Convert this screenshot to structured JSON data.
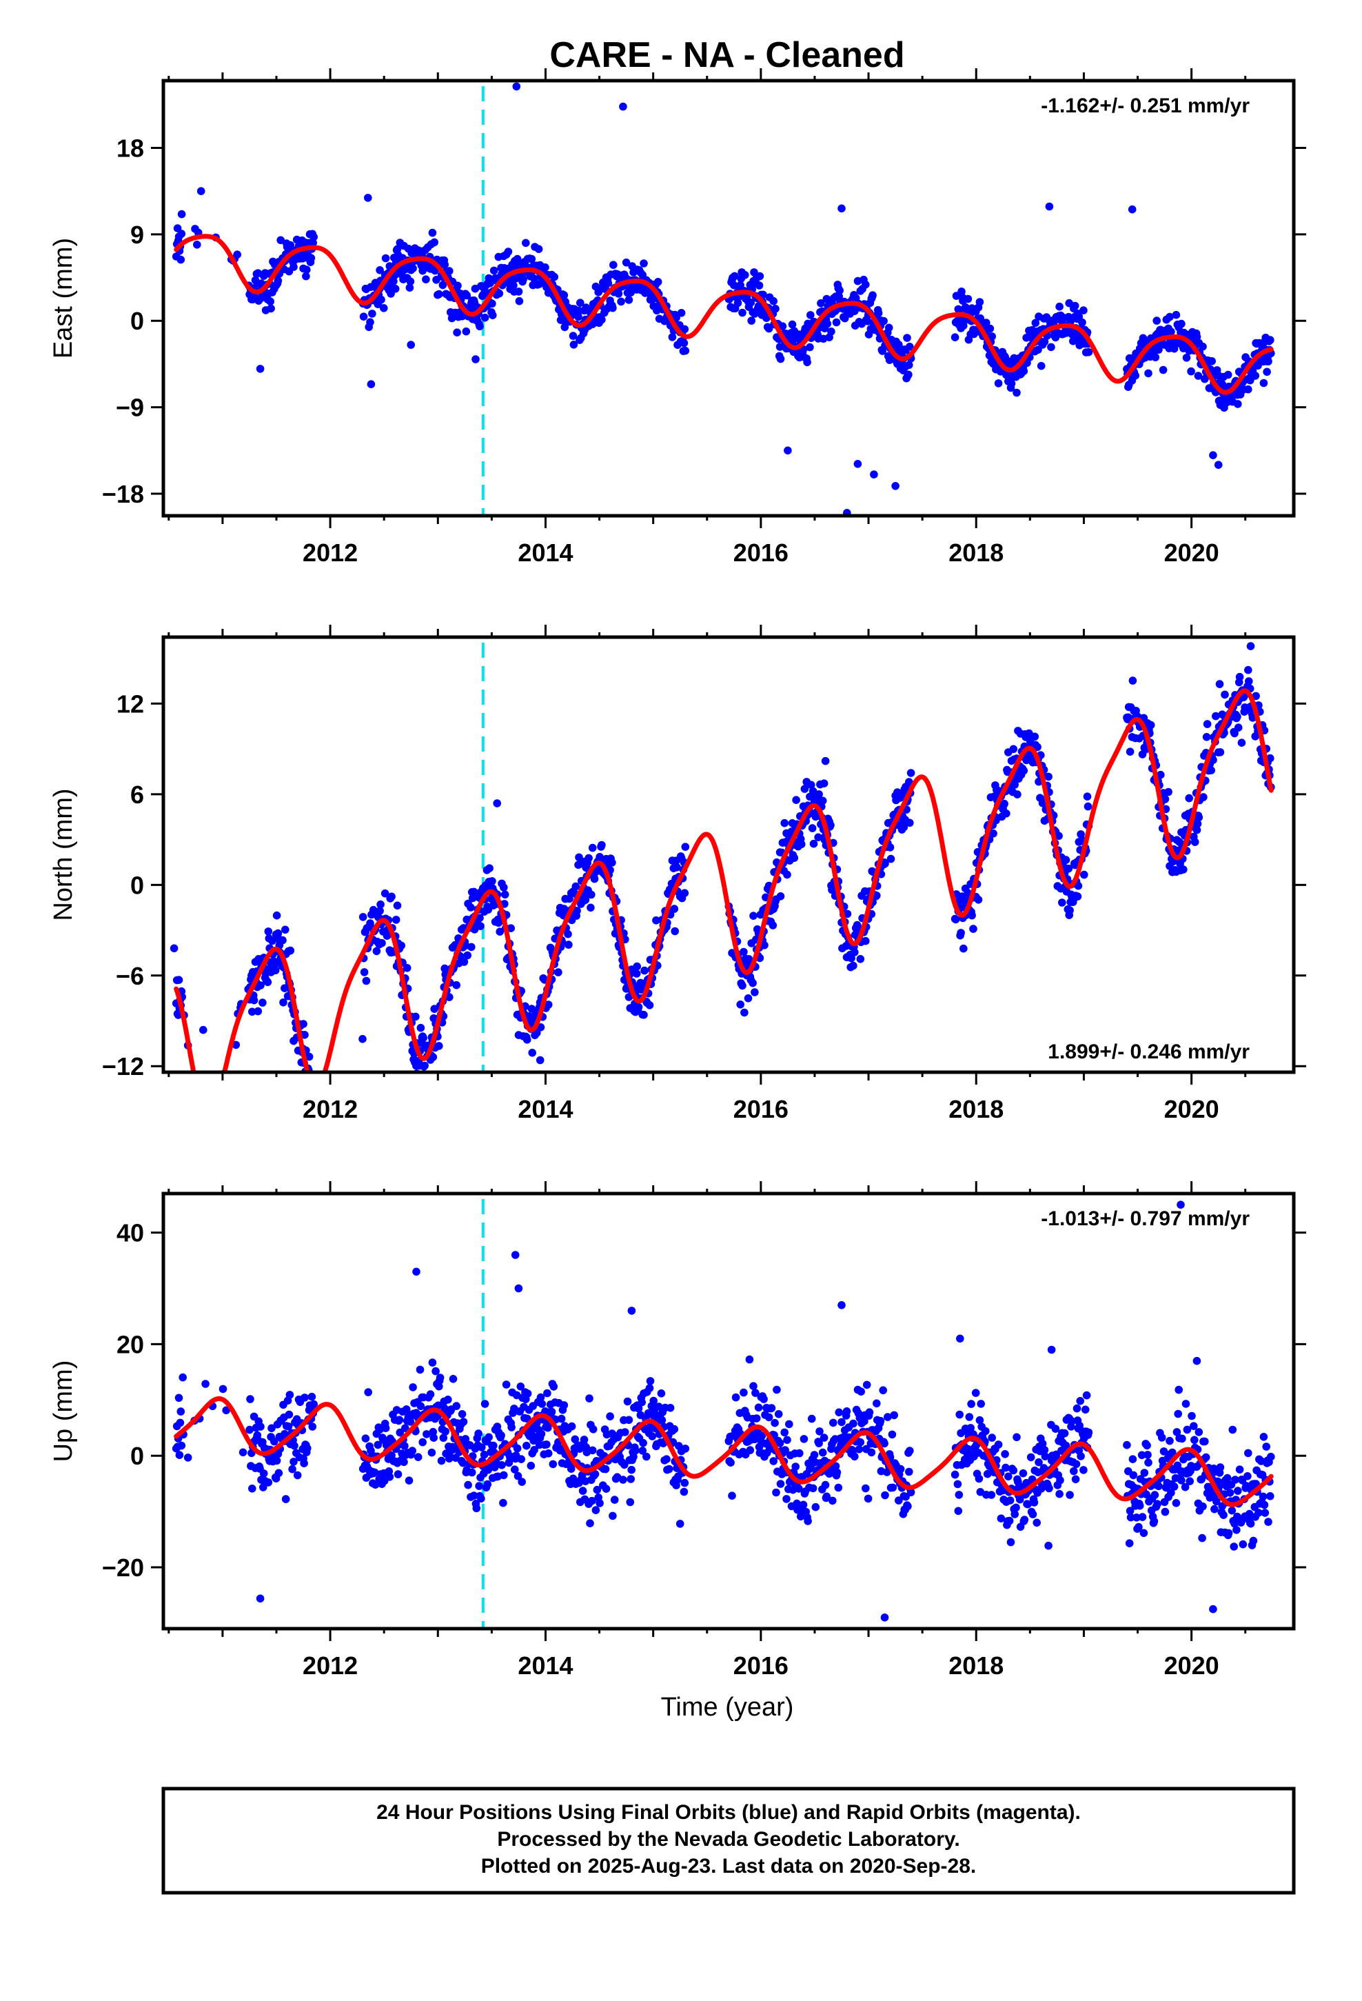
{
  "title": "CARE  - NA - Cleaned",
  "colors": {
    "final_orbits": "#0000ff",
    "rapid_orbits": "#ff00ff",
    "model": "#ff0000",
    "event_line": "#00e5ee",
    "frame": "#000000"
  },
  "chart_data": [
    {
      "type": "scatter",
      "name": "east",
      "ylabel": "East (mm)",
      "xlim": [
        2010.45,
        2020.95
      ],
      "ylim": [
        -20.3,
        25.0
      ],
      "yticks": [
        -18,
        -9,
        0,
        9,
        18
      ],
      "xticks": [
        2012,
        2014,
        2016,
        2018,
        2020
      ],
      "rate_text": "-1.162+/- 0.251 mm/yr",
      "rate_position": "top-right",
      "event_line_x": 2013.42,
      "model": {
        "trend_mm_per_yr": -1.162,
        "offset_at_2015": 1.8,
        "annual_amp": 2.6,
        "annual_phase": 2.7,
        "semiannual_amp": 0.5,
        "semiannual_phase": 1.0,
        "noise_sd": 1.1
      },
      "data_gaps": [
        [
          2011.85,
          2012.3
        ],
        [
          2015.3,
          2015.7
        ],
        [
          2017.4,
          2017.8
        ],
        [
          2019.05,
          2019.4
        ]
      ],
      "outliers": [
        [
          2013.73,
          24.4
        ],
        [
          2014.72,
          22.3
        ],
        [
          2010.62,
          11.1
        ],
        [
          2010.8,
          13.5
        ],
        [
          2012.35,
          12.8
        ],
        [
          2016.75,
          11.7
        ],
        [
          2018.68,
          11.9
        ],
        [
          2019.45,
          11.6
        ],
        [
          2016.25,
          -13.5
        ],
        [
          2016.9,
          -14.9
        ],
        [
          2017.05,
          -16.0
        ],
        [
          2017.25,
          -17.2
        ],
        [
          2016.8,
          -20.0
        ],
        [
          2020.25,
          -15.0
        ],
        [
          2020.2,
          -14.0
        ],
        [
          2012.38,
          -6.6
        ],
        [
          2013.35,
          -4.0
        ],
        [
          2012.75,
          -2.5
        ],
        [
          2011.35,
          -5.0
        ]
      ]
    },
    {
      "type": "scatter",
      "name": "north",
      "ylabel": "North (mm)",
      "xlim": [
        2010.45,
        2020.95
      ],
      "ylim": [
        -12.4,
        16.4
      ],
      "yticks": [
        -12,
        -6,
        0,
        6,
        12
      ],
      "xticks": [
        2012,
        2014,
        2016,
        2018,
        2020
      ],
      "rate_text": "1.899+/- 0.246 mm/yr",
      "rate_position": "bottom-right",
      "event_line_x": 2013.42,
      "model": {
        "trend_mm_per_yr": 1.899,
        "offset_at_2015": -2.0,
        "annual_amp": 4.6,
        "annual_phase": -1.0,
        "semiannual_amp": 1.1,
        "semiannual_phase": 0.5,
        "noise_sd": 1.0
      },
      "data_gaps": [
        [
          2011.85,
          2012.3
        ],
        [
          2015.3,
          2015.7
        ],
        [
          2017.4,
          2017.8
        ],
        [
          2019.05,
          2019.4
        ]
      ],
      "outliers": [
        [
          2010.55,
          -4.2
        ],
        [
          2010.82,
          -9.6
        ],
        [
          2013.55,
          5.4
        ],
        [
          2013.95,
          -11.6
        ],
        [
          2014.85,
          -5.4
        ],
        [
          2016.6,
          8.2
        ],
        [
          2020.55,
          15.8
        ],
        [
          2012.3,
          -10.2
        ]
      ]
    },
    {
      "type": "scatter",
      "name": "up",
      "ylabel": "Up (mm)",
      "xlabel": "Time (year)",
      "xlim": [
        2010.45,
        2020.95
      ],
      "ylim": [
        -31.0,
        47.0
      ],
      "yticks": [
        -20,
        0,
        20,
        40
      ],
      "xticks": [
        2012,
        2014,
        2016,
        2018,
        2020
      ],
      "rate_text": "-1.013+/- 0.797 mm/yr",
      "rate_position": "top-right",
      "event_line_x": 2013.42,
      "model": {
        "trend_mm_per_yr": -1.013,
        "offset_at_2015": 1.2,
        "annual_amp": 4.5,
        "annual_phase": 2.0,
        "semiannual_amp": 0.8,
        "semiannual_phase": 1.2,
        "noise_sd": 4.0
      },
      "data_gaps": [
        [
          2011.85,
          2012.3
        ],
        [
          2015.3,
          2015.7
        ],
        [
          2017.4,
          2017.8
        ],
        [
          2019.05,
          2019.4
        ]
      ],
      "outliers": [
        [
          2019.9,
          45.0
        ],
        [
          2013.72,
          36.0
        ],
        [
          2013.75,
          30.0
        ],
        [
          2012.8,
          33.0
        ],
        [
          2014.8,
          26.0
        ],
        [
          2016.75,
          27.0
        ],
        [
          2011.35,
          -25.6
        ],
        [
          2017.15,
          -29.0
        ],
        [
          2020.2,
          -27.5
        ],
        [
          2017.85,
          21.0
        ],
        [
          2018.7,
          19.0
        ],
        [
          2020.05,
          17.0
        ]
      ]
    }
  ],
  "footer": {
    "line1": "24 Hour Positions Using Final Orbits (blue) and Rapid Orbits (magenta).",
    "line2": "Processed by the Nevada Geodetic Laboratory.",
    "line3": "Plotted on 2025-Aug-23. Last data on 2020-Sep-28."
  }
}
